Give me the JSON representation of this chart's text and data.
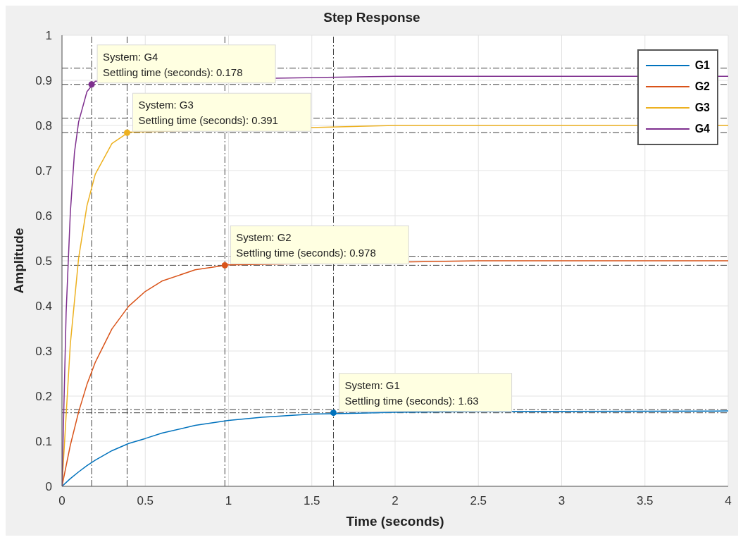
{
  "chart_data": {
    "type": "line",
    "title": "Step Response",
    "xlabel": "Time (seconds)",
    "ylabel": "Amplitude",
    "xlim": [
      0,
      4
    ],
    "xticks": [
      0,
      0.5,
      1,
      1.5,
      2,
      2.5,
      3,
      3.5,
      4
    ],
    "ylim": [
      0,
      1
    ],
    "yticks": [
      0,
      0.1,
      0.2,
      0.3,
      0.4,
      0.5,
      0.6,
      0.7,
      0.8,
      0.9,
      1
    ],
    "grid": true,
    "legend": "top right",
    "marker": "none",
    "line_style": "solid",
    "series": [
      {
        "name": "G1",
        "color": "#0072bd",
        "x": [
          0,
          0.05,
          0.1,
          0.15,
          0.2,
          0.3,
          0.4,
          0.5,
          0.6,
          0.8,
          1,
          1.2,
          1.5,
          2,
          2.5,
          3,
          4
        ],
        "values": [
          0,
          0.017,
          0.032,
          0.046,
          0.058,
          0.079,
          0.095,
          0.106,
          0.118,
          0.135,
          0.146,
          0.153,
          0.16,
          0.164,
          0.166,
          0.166,
          0.167
        ]
      },
      {
        "name": "G2",
        "color": "#d95319",
        "x": [
          0,
          0.05,
          0.1,
          0.15,
          0.2,
          0.3,
          0.4,
          0.5,
          0.6,
          0.8,
          1,
          2.5,
          3,
          4
        ],
        "values": [
          0,
          0.091,
          0.165,
          0.226,
          0.275,
          0.349,
          0.399,
          0.432,
          0.455,
          0.48,
          0.491,
          0.5,
          0.5,
          0.5
        ]
      },
      {
        "name": "G3",
        "color": "#edb120",
        "x": [
          0,
          0.05,
          0.1,
          0.15,
          0.2,
          0.3,
          0.4,
          2,
          3,
          4
        ],
        "values": [
          0,
          0.315,
          0.506,
          0.622,
          0.692,
          0.76,
          0.785,
          0.8,
          0.8,
          0.8
        ]
      },
      {
        "name": "G4",
        "color": "#7e2f8e",
        "x": [
          0,
          0.025,
          0.05,
          0.075,
          0.1,
          0.15,
          0.2,
          2,
          3,
          4
        ],
        "values": [
          0,
          0.385,
          0.606,
          0.74,
          0.808,
          0.875,
          0.898,
          0.909,
          0.909,
          0.909
        ]
      },
      {
        "type": "scatter",
        "marker": "circle",
        "color": "#0072bd",
        "x": [
          1.63
        ],
        "values": [
          0.163
        ]
      },
      {
        "type": "scatter",
        "marker": "circle",
        "color": "#d95319",
        "x": [
          0.978
        ],
        "values": [
          0.49
        ]
      },
      {
        "type": "scatter",
        "marker": "circle",
        "color": "#edb120",
        "x": [
          0.391
        ],
        "values": [
          0.784
        ]
      },
      {
        "type": "scatter",
        "marker": "circle",
        "color": "#7e2f8e",
        "x": [
          0.178
        ],
        "values": [
          0.891
        ]
      }
    ],
    "ref_lines": [
      {
        "axis": "y",
        "value": 0.17,
        "color": "#404040",
        "line_style": "dashdot"
      },
      {
        "axis": "y",
        "value": 0.163,
        "color": "#404040",
        "line_style": "dashdot"
      },
      {
        "axis": "y",
        "value": 0.51,
        "color": "#404040",
        "line_style": "dashdot"
      },
      {
        "axis": "y",
        "value": 0.49,
        "color": "#404040",
        "line_style": "dashdot"
      },
      {
        "axis": "y",
        "value": 0.816,
        "color": "#404040",
        "line_style": "dashdot"
      },
      {
        "axis": "y",
        "value": 0.784,
        "color": "#404040",
        "line_style": "dashdot"
      },
      {
        "axis": "y",
        "value": 0.927,
        "color": "#404040",
        "line_style": "dashdot"
      },
      {
        "axis": "y",
        "value": 0.891,
        "color": "#404040",
        "line_style": "dashdot"
      },
      {
        "axis": "x",
        "value": 0.178,
        "color": "#404040",
        "line_style": "dashdot"
      },
      {
        "axis": "x",
        "value": 0.391,
        "color": "#404040",
        "line_style": "dashdot"
      },
      {
        "axis": "x",
        "value": 0.978,
        "color": "#404040",
        "line_style": "dashdot"
      },
      {
        "axis": "x",
        "value": 1.63,
        "color": "#404040",
        "line_style": "dashdot"
      }
    ],
    "annotations": [
      {
        "text": "System: G4\nSettling time (seconds): 0.178",
        "x": 0.178,
        "y": 0.891
      },
      {
        "text": "System: G3\nSettling time (seconds): 0.391",
        "x": 0.391,
        "y": 0.784
      },
      {
        "text": "System: G2\nSettling time (seconds): 0.978",
        "x": 0.978,
        "y": 0.49
      },
      {
        "text": "System: G1\nSettling time (seconds): 1.63",
        "x": 1.63,
        "y": 0.163
      }
    ]
  }
}
